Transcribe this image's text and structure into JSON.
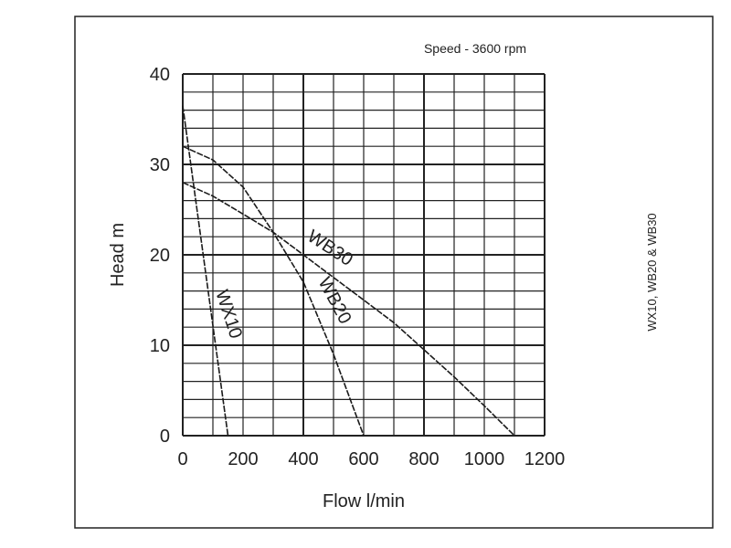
{
  "chart_data": {
    "type": "line",
    "annotation": "Speed - 3600 rpm",
    "side_label": "WX10, WB20 & WB30",
    "xlabel": "Flow l/min",
    "ylabel": "Head m",
    "xlim": [
      0,
      1200
    ],
    "ylim": [
      0,
      40
    ],
    "x_ticks": [
      "0",
      "200",
      "400",
      "600",
      "800",
      "1000",
      "1200"
    ],
    "y_ticks": [
      "0",
      "10",
      "20",
      "30",
      "40"
    ],
    "grid": true,
    "series": [
      {
        "name": "WX10",
        "x": [
          0,
          150
        ],
        "y": [
          36.5,
          0
        ]
      },
      {
        "name": "WB20",
        "x": [
          0,
          100,
          200,
          300,
          400,
          500,
          600
        ],
        "y": [
          32,
          30.5,
          27.5,
          22.5,
          17,
          9,
          0
        ]
      },
      {
        "name": "WB30",
        "x": [
          0,
          100,
          200,
          300,
          400,
          500,
          600,
          700,
          800,
          900,
          1000,
          1100
        ],
        "y": [
          28,
          26.5,
          24.5,
          22.5,
          20,
          17.5,
          15,
          12.5,
          9.5,
          6.5,
          3.3,
          0
        ]
      }
    ]
  }
}
